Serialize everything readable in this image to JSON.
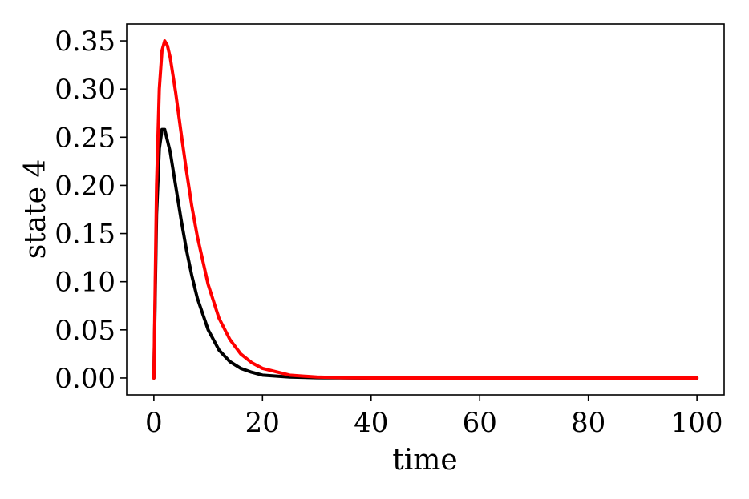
{
  "chart_data": {
    "type": "line",
    "title": "",
    "xlabel": "time",
    "ylabel": "state 4",
    "xlim": [
      -5,
      105
    ],
    "ylim": [
      -0.0175,
      0.3675
    ],
    "x_ticks": [
      0,
      20,
      40,
      60,
      80,
      100
    ],
    "x_tick_labels": [
      "0",
      "20",
      "40",
      "60",
      "80",
      "100"
    ],
    "y_ticks": [
      0.0,
      0.05,
      0.1,
      0.15,
      0.2,
      0.25,
      0.3,
      0.35
    ],
    "y_tick_labels": [
      "0.00",
      "0.05",
      "0.10",
      "0.15",
      "0.20",
      "0.25",
      "0.30",
      "0.35"
    ],
    "grid": false,
    "legend": "none",
    "series": [
      {
        "color": "#000000",
        "x": [
          0,
          0.5,
          1,
          1.5,
          2,
          3,
          4,
          5,
          6,
          7,
          8,
          10,
          12,
          14,
          16,
          18,
          20,
          25,
          30,
          40,
          50,
          60,
          70,
          80,
          90,
          100
        ],
        "y": [
          0,
          0.17,
          0.238,
          0.258,
          0.258,
          0.235,
          0.2,
          0.165,
          0.133,
          0.106,
          0.083,
          0.05,
          0.029,
          0.017,
          0.01,
          0.006,
          0.003,
          0.001,
          0.0003,
          0.0,
          0.0,
          0.0,
          0.0,
          0.0,
          0.0,
          0.0
        ]
      },
      {
        "color": "#ff0000",
        "x": [
          0,
          0.5,
          1,
          1.5,
          2,
          2.5,
          3,
          4,
          5,
          6,
          7,
          8,
          10,
          12,
          14,
          16,
          18,
          20,
          25,
          30,
          35,
          40,
          50,
          60,
          70,
          80,
          90,
          100
        ],
        "y": [
          0,
          0.2,
          0.3,
          0.34,
          0.35,
          0.345,
          0.333,
          0.297,
          0.255,
          0.215,
          0.178,
          0.147,
          0.097,
          0.062,
          0.04,
          0.025,
          0.016,
          0.01,
          0.003,
          0.001,
          0.0003,
          0.0,
          0.0,
          0.0,
          0.0,
          0.0,
          0.0,
          0.0
        ]
      }
    ]
  }
}
